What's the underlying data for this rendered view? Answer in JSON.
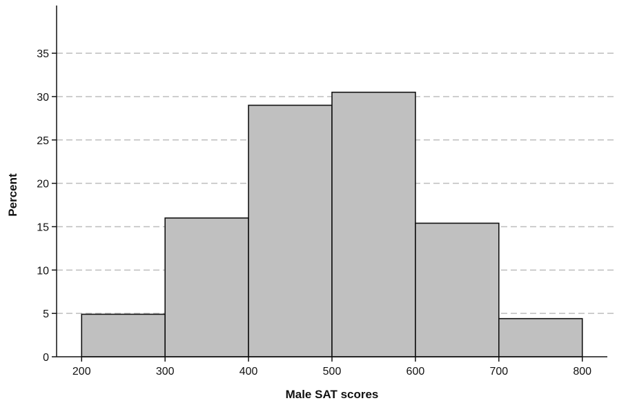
{
  "chart_data": {
    "type": "bar",
    "subtype": "histogram",
    "bins": [
      {
        "start": 200,
        "end": 300,
        "value": 4.9
      },
      {
        "start": 300,
        "end": 400,
        "value": 16.0
      },
      {
        "start": 400,
        "end": 500,
        "value": 29.0
      },
      {
        "start": 500,
        "end": 600,
        "value": 30.5
      },
      {
        "start": 600,
        "end": 700,
        "value": 15.4
      },
      {
        "start": 700,
        "end": 800,
        "value": 4.4
      }
    ],
    "xlabel": "Male SAT scores",
    "ylabel": "Percent",
    "xlim": [
      170,
      830
    ],
    "ylim": [
      0,
      40.5
    ],
    "xticks": [
      200,
      300,
      400,
      500,
      600,
      700,
      800
    ],
    "yticks": [
      0,
      5,
      10,
      15,
      20,
      25,
      30,
      35
    ],
    "grid": "horizontal dashed",
    "legend": "none",
    "colors": {
      "bar_fill": "#c0c0c0",
      "bar_stroke": "#111111",
      "grid": "#bdbdbd",
      "axis": "#111111"
    }
  }
}
